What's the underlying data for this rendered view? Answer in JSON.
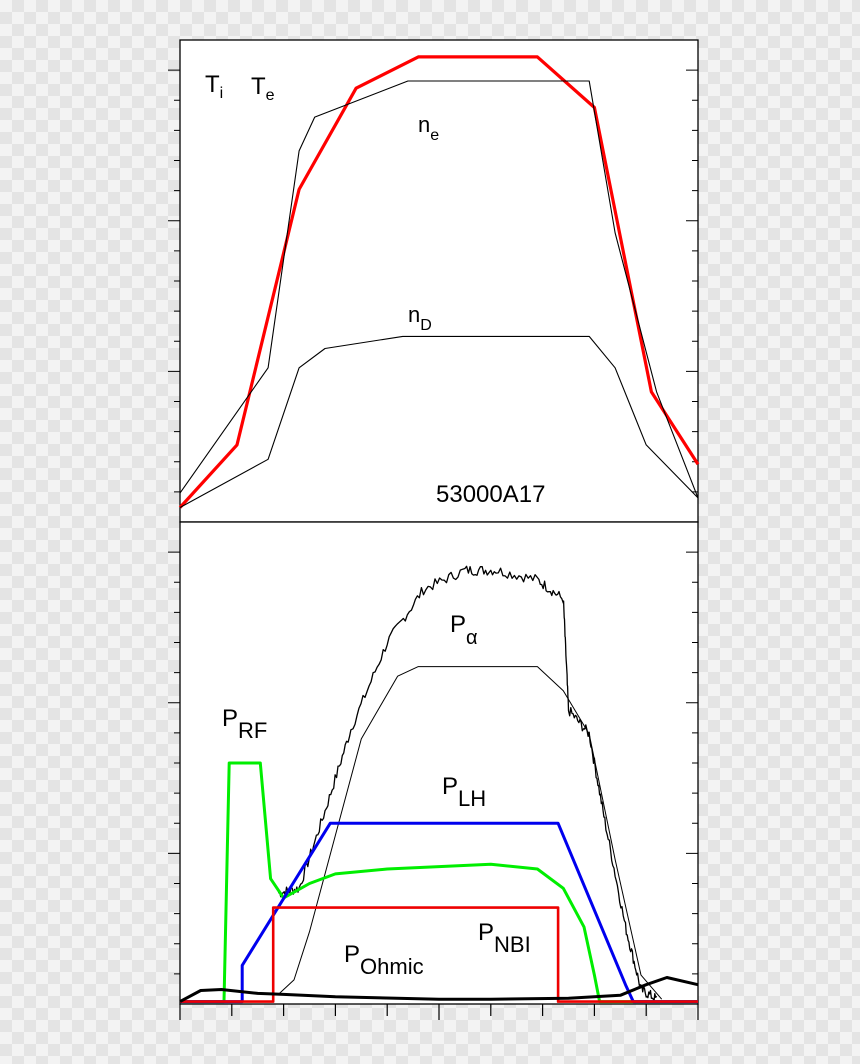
{
  "chart_data": [
    {
      "type": "line",
      "title": "",
      "annotation": "53000A17",
      "xlabel": "",
      "ylabel": "",
      "xlim": [
        0,
        1
      ],
      "ylim": [
        0,
        1
      ],
      "labels": {
        "ti": "T",
        "ti_sub": "i",
        "te": "T",
        "te_sub": "e",
        "ne": "n",
        "ne_sub": "e",
        "nd": "n",
        "nd_sub": "D"
      },
      "colors": {
        "te": "#ff0000",
        "ne": "#000000",
        "nd": "#000000"
      },
      "series": [
        {
          "key": "te",
          "name": "T",
          "points": [
            [
              0,
              0.03
            ],
            [
              0.11,
              0.16
            ],
            [
              0.23,
              0.69
            ],
            [
              0.34,
              0.9
            ],
            [
              0.46,
              0.965
            ],
            [
              0.69,
              0.965
            ],
            [
              0.8,
              0.86
            ],
            [
              0.91,
              0.27
            ],
            [
              1,
              0.12
            ]
          ]
        },
        {
          "key": "ne",
          "name": "n",
          "points": [
            [
              0,
              0.06
            ],
            [
              0.17,
              0.32
            ],
            [
              0.23,
              0.77
            ],
            [
              0.26,
              0.84
            ],
            [
              0.44,
              0.915
            ],
            [
              0.79,
              0.915
            ],
            [
              0.84,
              0.6
            ],
            [
              0.92,
              0.27
            ],
            [
              1,
              0.05
            ]
          ]
        },
        {
          "key": "nd",
          "name": "n",
          "points": [
            [
              0,
              0.03
            ],
            [
              0.17,
              0.13
            ],
            [
              0.23,
              0.32
            ],
            [
              0.28,
              0.36
            ],
            [
              0.43,
              0.385
            ],
            [
              0.79,
              0.385
            ],
            [
              0.84,
              0.32
            ],
            [
              0.9,
              0.16
            ],
            [
              1,
              0.05
            ]
          ]
        }
      ]
    },
    {
      "type": "line",
      "title": "",
      "xlabel": "",
      "ylabel": "",
      "xlim": [
        0,
        1
      ],
      "ylim": [
        0,
        1
      ],
      "labels": {
        "p_alpha": "P",
        "p_alpha_sub": "α",
        "p_rf": "P",
        "p_rf_sub": "RF",
        "p_lh": "P",
        "p_lh_sub": "LH",
        "p_nbi": "P",
        "p_nbi_sub": "NBI",
        "p_ohmic": "P",
        "p_ohmic_sub": "Ohmic"
      },
      "colors": {
        "p_alpha": "#000000",
        "p_alpha_inner": "#000000",
        "p_rf": "#00ee00",
        "p_lh": "#0000ee",
        "p_nbi": "#ee0000",
        "p_ohmic": "#000000"
      },
      "series": [
        {
          "key": "p_alpha",
          "name": "P",
          "noisy": true,
          "points": [
            [
              0.19,
              0.23
            ],
            [
              0.23,
              0.24
            ],
            [
              0.28,
              0.4
            ],
            [
              0.33,
              0.57
            ],
            [
              0.4,
              0.75
            ],
            [
              0.47,
              0.86
            ],
            [
              0.55,
              0.9
            ],
            [
              0.61,
              0.9
            ],
            [
              0.69,
              0.88
            ],
            [
              0.74,
              0.84
            ],
            [
              0.75,
              0.61
            ],
            [
              0.79,
              0.56
            ],
            [
              0.82,
              0.38
            ],
            [
              0.86,
              0.16
            ],
            [
              0.89,
              0.03
            ],
            [
              0.92,
              0.01
            ]
          ]
        },
        {
          "key": "p_alpha_inner",
          "name": "",
          "noisy": false,
          "points": [
            [
              0.19,
              0.02
            ],
            [
              0.22,
              0.05
            ],
            [
              0.25,
              0.15
            ],
            [
              0.3,
              0.35
            ],
            [
              0.35,
              0.55
            ],
            [
              0.42,
              0.68
            ],
            [
              0.46,
              0.7
            ],
            [
              0.69,
              0.7
            ],
            [
              0.74,
              0.65
            ],
            [
              0.79,
              0.56
            ],
            [
              0.84,
              0.3
            ],
            [
              0.89,
              0.06
            ],
            [
              0.93,
              0.01
            ]
          ]
        },
        {
          "key": "p_rf",
          "name": "P",
          "points": [
            [
              0,
              0.005
            ],
            [
              0.085,
              0.005
            ],
            [
              0.095,
              0.5
            ],
            [
              0.155,
              0.5
            ],
            [
              0.175,
              0.26
            ],
            [
              0.2,
              0.22
            ],
            [
              0.25,
              0.25
            ],
            [
              0.3,
              0.27
            ],
            [
              0.4,
              0.28
            ],
            [
              0.6,
              0.29
            ],
            [
              0.69,
              0.28
            ],
            [
              0.74,
              0.24
            ],
            [
              0.78,
              0.16
            ],
            [
              0.8,
              0.06
            ],
            [
              0.81,
              0.005
            ],
            [
              1,
              0.005
            ]
          ]
        },
        {
          "key": "p_lh",
          "name": "P",
          "points": [
            [
              0,
              0.005
            ],
            [
              0.12,
              0.005
            ],
            [
              0.12,
              0.08
            ],
            [
              0.29,
              0.375
            ],
            [
              0.73,
              0.375
            ],
            [
              0.86,
              0.04
            ],
            [
              0.875,
              0.005
            ],
            [
              1,
              0.005
            ]
          ]
        },
        {
          "key": "p_nbi",
          "name": "P",
          "points": [
            [
              0,
              0.005
            ],
            [
              0.18,
              0.005
            ],
            [
              0.18,
              0.2
            ],
            [
              0.73,
              0.2
            ],
            [
              0.73,
              0.005
            ],
            [
              1,
              0.005
            ]
          ]
        },
        {
          "key": "p_ohmic",
          "name": "P",
          "points": [
            [
              0,
              0.005
            ],
            [
              0.04,
              0.028
            ],
            [
              0.08,
              0.03
            ],
            [
              0.15,
              0.022
            ],
            [
              0.2,
              0.02
            ],
            [
              0.3,
              0.015
            ],
            [
              0.5,
              0.01
            ],
            [
              0.6,
              0.01
            ],
            [
              0.75,
              0.012
            ],
            [
              0.85,
              0.018
            ],
            [
              0.9,
              0.04
            ],
            [
              0.94,
              0.055
            ],
            [
              1,
              0.04
            ]
          ]
        }
      ]
    }
  ]
}
